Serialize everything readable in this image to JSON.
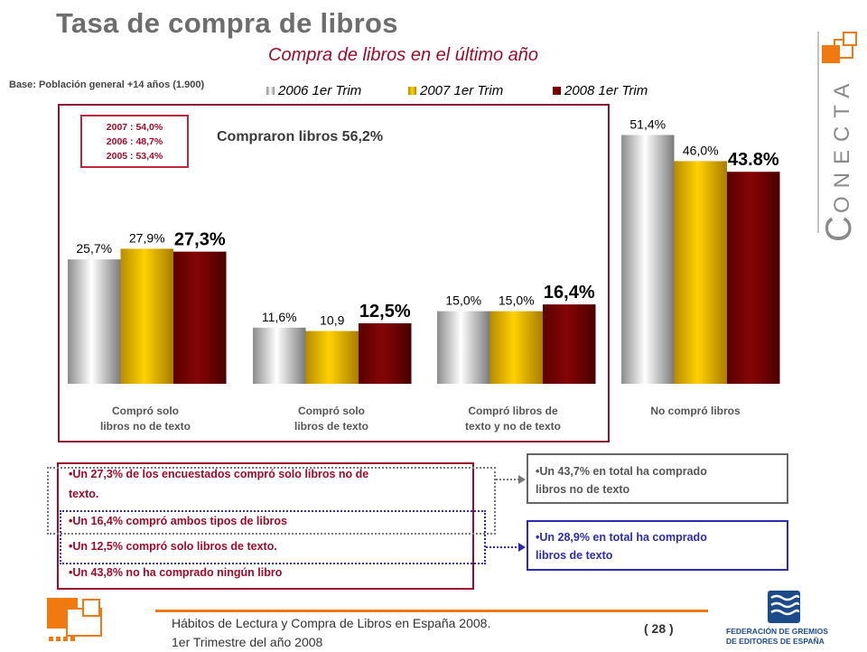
{
  "header": {
    "title": "Tasa de compra de libros",
    "subtitle": "Compra de libros en el último año",
    "base_note": "Base: Población general +14 años (1.900)"
  },
  "colors": {
    "series_2006": "#d8d8d8",
    "series_2007": "#e8b800",
    "series_2008": "#7a0000",
    "accent_red": "#9e0b2a",
    "accent_blue": "#2b2bb0",
    "accent_orange": "#f07a10"
  },
  "history_box": [
    "2007 : 54,0%",
    "2006 : 48,7%",
    "2005 : 53,4%"
  ],
  "bought_total": "Compraron libros 56,2%",
  "chart_data": {
    "type": "bar",
    "categories": [
      [
        "Compró solo",
        "libros no de texto"
      ],
      [
        "Compró solo",
        "libros de texto"
      ],
      [
        "Compró libros de",
        "texto y no de texto"
      ],
      [
        "No compró libros"
      ]
    ],
    "series": [
      {
        "name": "2006 1er Trim",
        "values": [
          25.7,
          11.6,
          15.0,
          51.4
        ],
        "labels": [
          "25,7%",
          "11,6%",
          "15,0%",
          "51,4%"
        ]
      },
      {
        "name": "2007 1er Trim",
        "values": [
          27.9,
          10.9,
          15.0,
          46.0
        ],
        "labels": [
          "27,9%",
          "10,9",
          "15,0%",
          "46,0%"
        ]
      },
      {
        "name": "2008 1er Trim",
        "values": [
          27.3,
          12.5,
          16.4,
          43.8
        ],
        "labels": [
          "27,3%",
          "12,5%",
          "16,4%",
          "43.8%"
        ]
      }
    ],
    "ylim": [
      0,
      60
    ]
  },
  "bullets": [
    "•Un 27,3% de los encuestados compró solo libros no de",
    "texto.",
    "•Un 16,4% compró ambos tipos de libros",
    "•Un 12,5% compró solo libros de texto.",
    "•Un 43,8% no ha comprado ningún libro"
  ],
  "side_boxes": {
    "gray": [
      "•Un 43,7% en total ha comprado",
      "libros no de texto"
    ],
    "blue": [
      "•Un 28,9% en total ha comprado",
      "libros de texto"
    ]
  },
  "footer": {
    "line1": "Hábitos de Lectura y Compra de Libros en España 2008.",
    "line2": "1er Trimestre del año 2008",
    "page": "( 28 )"
  },
  "logos": {
    "conecta": "ONECTA",
    "conecta_initial": "C",
    "fgee_line1": "FEDERACIÓN DE GREMIOS",
    "fgee_line2": "DE EDITORES DE ESPAÑA"
  }
}
